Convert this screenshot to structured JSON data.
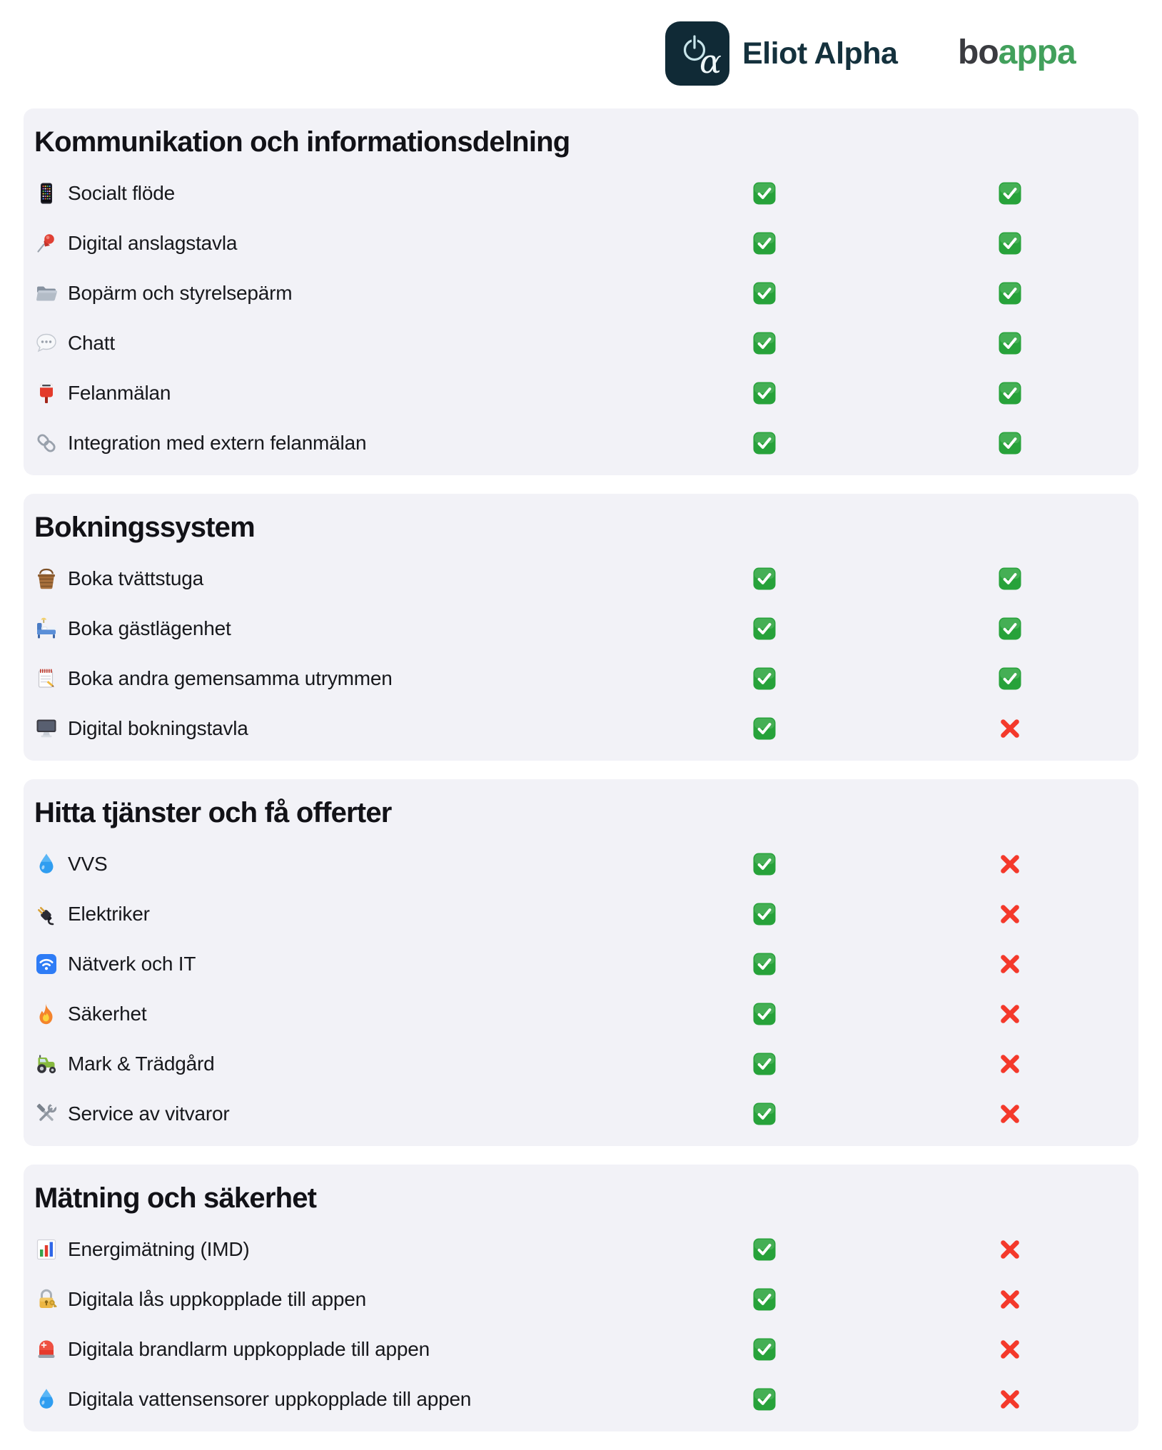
{
  "header": {
    "eliot": {
      "name": "Eliot Alpha",
      "logo_glyph": "α",
      "logo_icon": "power-alpha-logo-icon"
    },
    "boappa": {
      "part1": "bo",
      "part2": "appa"
    }
  },
  "columns": [
    "Eliot Alpha",
    "boappa"
  ],
  "colors": {
    "card_background": "#f2f2f7",
    "text": "#17181c",
    "eliot_dark_teal": "#14313d",
    "eliot_logo_background": "#102a36",
    "eliot_logo_accent": "#c7e4ea",
    "boappa_gray": "#3a3b40",
    "boappa_green": "#42a05c",
    "check_green": "#27a23a",
    "cross_red": "#f4392b"
  },
  "legend": {
    "available": "check-icon",
    "unavailable": "cross-icon"
  },
  "sections": [
    {
      "title": "Kommunikation och informationsdelning",
      "rows": [
        {
          "icon": "phone-icon",
          "label": "Socialt flöde",
          "eliot_alpha": true,
          "boappa": true
        },
        {
          "icon": "pin-icon",
          "label": "Digital anslagstavla",
          "eliot_alpha": true,
          "boappa": true
        },
        {
          "icon": "folder-icon",
          "label": "Bopärm och styrelsepärm",
          "eliot_alpha": true,
          "boappa": true
        },
        {
          "icon": "chat-icon",
          "label": "Chatt",
          "eliot_alpha": true,
          "boappa": true
        },
        {
          "icon": "postbox-icon",
          "label": "Felanmälan",
          "eliot_alpha": true,
          "boappa": true
        },
        {
          "icon": "link-icon",
          "label": "Integration med extern felanmälan",
          "eliot_alpha": true,
          "boappa": true
        }
      ]
    },
    {
      "title": "Bokningssystem",
      "rows": [
        {
          "icon": "basket-icon",
          "label": "Boka tvättstuga",
          "eliot_alpha": true,
          "boappa": true
        },
        {
          "icon": "bed-icon",
          "label": "Boka gästlägenhet",
          "eliot_alpha": true,
          "boappa": true
        },
        {
          "icon": "notepad-icon",
          "label": "Boka andra gemensamma utrymmen",
          "eliot_alpha": true,
          "boappa": true
        },
        {
          "icon": "desktop-icon",
          "label": "Digital bokningstavla",
          "eliot_alpha": true,
          "boappa": false
        }
      ]
    },
    {
      "title": "Hitta tjänster och få offerter",
      "rows": [
        {
          "icon": "droplet-icon",
          "label": "VVS",
          "eliot_alpha": true,
          "boappa": false
        },
        {
          "icon": "plug-icon",
          "label": "Elektriker",
          "eliot_alpha": true,
          "boappa": false
        },
        {
          "icon": "wifi-icon",
          "label": "Nätverk och IT",
          "eliot_alpha": true,
          "boappa": false
        },
        {
          "icon": "fire-icon",
          "label": "Säkerhet",
          "eliot_alpha": true,
          "boappa": false
        },
        {
          "icon": "tractor-icon",
          "label": "Mark & Trädgård",
          "eliot_alpha": true,
          "boappa": false
        },
        {
          "icon": "tools-icon",
          "label": "Service av vitvaror",
          "eliot_alpha": true,
          "boappa": false
        }
      ]
    },
    {
      "title": "Mätning och säkerhet",
      "rows": [
        {
          "icon": "chart-icon",
          "label": "Energimätning (IMD)",
          "eliot_alpha": true,
          "boappa": false
        },
        {
          "icon": "lock-icon",
          "label": "Digitala lås uppkopplade till appen",
          "eliot_alpha": true,
          "boappa": false
        },
        {
          "icon": "alarm-icon",
          "label": "Digitala brandlarm uppkopplade till appen",
          "eliot_alpha": true,
          "boappa": false
        },
        {
          "icon": "droplet-icon",
          "label": "Digitala vattensensorer uppkopplade till appen",
          "eliot_alpha": true,
          "boappa": false
        }
      ]
    }
  ]
}
